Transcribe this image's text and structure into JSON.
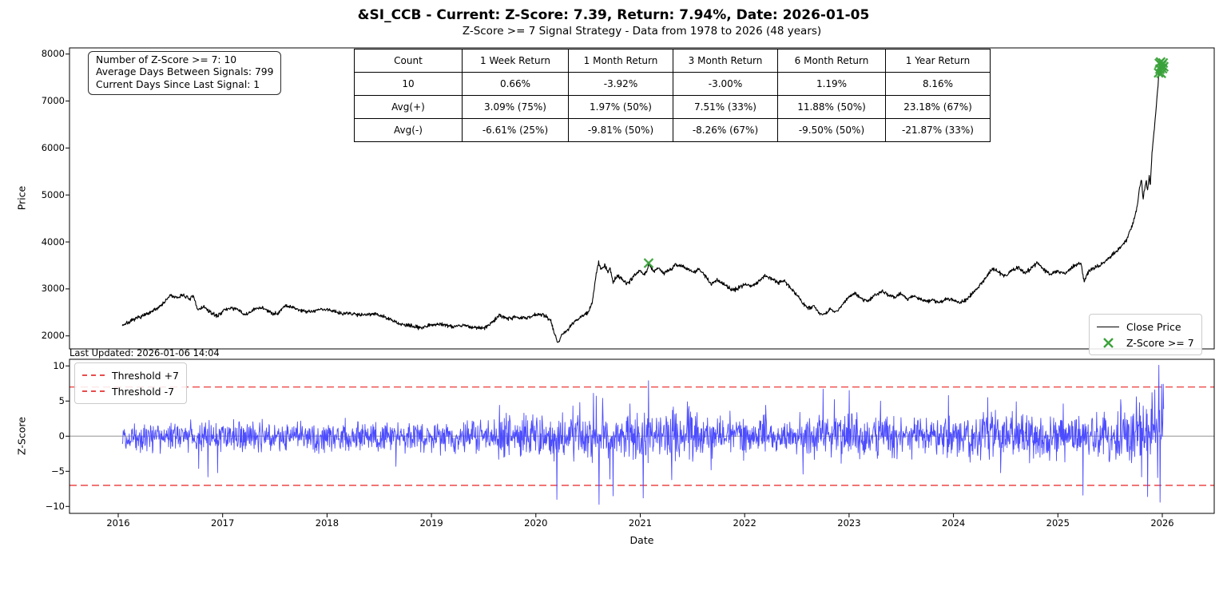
{
  "header": {
    "title": "&SI_CCB - Current: Z-Score: 7.39, Return: 7.94%, Date: 2026-01-05",
    "subtitle": "Z-Score >= 7 Signal Strategy - Data from 1978 to 2026 (48 years)"
  },
  "info_box": {
    "lines": [
      "Number of Z-Score >= 7: 10",
      "Average Days Between Signals: 799",
      "Current Days Since Last Signal: 1"
    ]
  },
  "stats_table": {
    "columns": [
      "Count",
      "1 Week Return",
      "1 Month Return",
      "3 Month Return",
      "6 Month Return",
      "1 Year Return"
    ],
    "rows": [
      [
        "10",
        "0.66%",
        "-3.92%",
        "-3.00%",
        "1.19%",
        "8.16%"
      ],
      [
        "Avg(+)",
        "3.09% (75%)",
        "1.97% (50%)",
        "7.51% (33%)",
        "11.88% (50%)",
        "23.18% (67%)"
      ],
      [
        "Avg(-)",
        "-6.61% (25%)",
        "-9.81% (50%)",
        "-8.26% (67%)",
        "-9.50% (50%)",
        "-21.87% (33%)"
      ]
    ]
  },
  "price_chart": {
    "ylabel": "Price",
    "yticks": [
      8000,
      7000,
      6000,
      5000,
      4000,
      3000,
      2000
    ],
    "legend": [
      {
        "label": "Close Price",
        "type": "line",
        "color": "#000000"
      },
      {
        "label": "Z-Score >= 7",
        "type": "x-marker",
        "color": "#3aa23a"
      }
    ]
  },
  "zscore_chart": {
    "ylabel": "Z-Score",
    "ytick_values": [
      10,
      5,
      0,
      -5,
      -10
    ],
    "ytick_labels": [
      "10",
      "5",
      "0",
      "−5",
      "−10"
    ],
    "legend": [
      {
        "label": "Threshold +7"
      },
      {
        "label": "Threshold -7"
      }
    ]
  },
  "xaxis": {
    "label": "Date",
    "ticks": [
      2016,
      2017,
      2018,
      2019,
      2020,
      2021,
      2022,
      2023,
      2024,
      2025,
      2026
    ]
  },
  "footer": {
    "last_updated": "Last Updated: 2026-01-06 14:04"
  },
  "colors": {
    "price": "#000000",
    "signal": "#3aa23a",
    "zscore": "#4c4cff",
    "threshold": "#ee4444",
    "zero_line": "#b0b0b0",
    "spine": "#000000"
  },
  "chart_data": [
    {
      "type": "line",
      "name": "Close Price",
      "xlabel": "Date",
      "ylabel": "Price",
      "x_range": [
        2016.04,
        2026.014
      ],
      "ylim": [
        1720,
        8130
      ],
      "noise": {
        "seed": 7,
        "amp": 20,
        "steps_per_year": 260
      },
      "keypoints": [
        [
          2016.04,
          2230
        ],
        [
          2016.12,
          2310
        ],
        [
          2016.2,
          2400
        ],
        [
          2016.3,
          2480
        ],
        [
          2016.38,
          2600
        ],
        [
          2016.45,
          2730
        ],
        [
          2016.5,
          2870
        ],
        [
          2016.56,
          2800
        ],
        [
          2016.62,
          2880
        ],
        [
          2016.68,
          2780
        ],
        [
          2016.72,
          2840
        ],
        [
          2016.76,
          2560
        ],
        [
          2016.82,
          2620
        ],
        [
          2016.88,
          2500
        ],
        [
          2016.95,
          2420
        ],
        [
          2017.0,
          2530
        ],
        [
          2017.08,
          2600
        ],
        [
          2017.15,
          2550
        ],
        [
          2017.22,
          2440
        ],
        [
          2017.3,
          2560
        ],
        [
          2017.38,
          2610
        ],
        [
          2017.45,
          2500
        ],
        [
          2017.52,
          2470
        ],
        [
          2017.6,
          2650
        ],
        [
          2017.68,
          2600
        ],
        [
          2017.75,
          2540
        ],
        [
          2017.85,
          2520
        ],
        [
          2017.95,
          2570
        ],
        [
          2018.05,
          2540
        ],
        [
          2018.15,
          2480
        ],
        [
          2018.25,
          2470
        ],
        [
          2018.35,
          2450
        ],
        [
          2018.45,
          2480
        ],
        [
          2018.55,
          2400
        ],
        [
          2018.65,
          2300
        ],
        [
          2018.72,
          2240
        ],
        [
          2018.8,
          2210
        ],
        [
          2018.9,
          2180
        ],
        [
          2019.0,
          2240
        ],
        [
          2019.1,
          2250
        ],
        [
          2019.2,
          2200
        ],
        [
          2019.3,
          2230
        ],
        [
          2019.4,
          2180
        ],
        [
          2019.5,
          2160
        ],
        [
          2019.58,
          2280
        ],
        [
          2019.65,
          2440
        ],
        [
          2019.72,
          2380
        ],
        [
          2019.8,
          2400
        ],
        [
          2019.9,
          2370
        ],
        [
          2020.0,
          2460
        ],
        [
          2020.08,
          2440
        ],
        [
          2020.14,
          2340
        ],
        [
          2020.18,
          2050
        ],
        [
          2020.21,
          1840
        ],
        [
          2020.25,
          2040
        ],
        [
          2020.3,
          2120
        ],
        [
          2020.38,
          2320
        ],
        [
          2020.45,
          2430
        ],
        [
          2020.5,
          2500
        ],
        [
          2020.54,
          2700
        ],
        [
          2020.58,
          3350
        ],
        [
          2020.6,
          3560
        ],
        [
          2020.63,
          3420
        ],
        [
          2020.66,
          3500
        ],
        [
          2020.69,
          3370
        ],
        [
          2020.71,
          3440
        ],
        [
          2020.74,
          3140
        ],
        [
          2020.78,
          3280
        ],
        [
          2020.82,
          3230
        ],
        [
          2020.87,
          3120
        ],
        [
          2020.9,
          3160
        ],
        [
          2020.95,
          3310
        ],
        [
          2021.0,
          3390
        ],
        [
          2021.03,
          3290
        ],
        [
          2021.06,
          3360
        ],
        [
          2021.08,
          3550
        ],
        [
          2021.1,
          3470
        ],
        [
          2021.13,
          3390
        ],
        [
          2021.17,
          3450
        ],
        [
          2021.22,
          3330
        ],
        [
          2021.28,
          3400
        ],
        [
          2021.34,
          3520
        ],
        [
          2021.4,
          3490
        ],
        [
          2021.46,
          3410
        ],
        [
          2021.52,
          3360
        ],
        [
          2021.56,
          3430
        ],
        [
          2021.62,
          3280
        ],
        [
          2021.68,
          3100
        ],
        [
          2021.74,
          3190
        ],
        [
          2021.8,
          3110
        ],
        [
          2021.87,
          2990
        ],
        [
          2021.93,
          3000
        ],
        [
          2022.0,
          3100
        ],
        [
          2022.07,
          3060
        ],
        [
          2022.13,
          3160
        ],
        [
          2022.2,
          3290
        ],
        [
          2022.26,
          3210
        ],
        [
          2022.32,
          3140
        ],
        [
          2022.38,
          3170
        ],
        [
          2022.44,
          3020
        ],
        [
          2022.5,
          2870
        ],
        [
          2022.56,
          2690
        ],
        [
          2022.62,
          2580
        ],
        [
          2022.66,
          2640
        ],
        [
          2022.71,
          2490
        ],
        [
          2022.76,
          2450
        ],
        [
          2022.82,
          2570
        ],
        [
          2022.87,
          2500
        ],
        [
          2022.93,
          2640
        ],
        [
          2023.0,
          2840
        ],
        [
          2023.06,
          2900
        ],
        [
          2023.12,
          2790
        ],
        [
          2023.18,
          2730
        ],
        [
          2023.25,
          2880
        ],
        [
          2023.32,
          2950
        ],
        [
          2023.38,
          2870
        ],
        [
          2023.44,
          2830
        ],
        [
          2023.5,
          2910
        ],
        [
          2023.56,
          2780
        ],
        [
          2023.62,
          2850
        ],
        [
          2023.68,
          2800
        ],
        [
          2023.74,
          2720
        ],
        [
          2023.8,
          2770
        ],
        [
          2023.87,
          2710
        ],
        [
          2023.93,
          2790
        ],
        [
          2024.0,
          2760
        ],
        [
          2024.06,
          2700
        ],
        [
          2024.12,
          2770
        ],
        [
          2024.2,
          2950
        ],
        [
          2024.27,
          3120
        ],
        [
          2024.33,
          3310
        ],
        [
          2024.38,
          3430
        ],
        [
          2024.44,
          3340
        ],
        [
          2024.5,
          3270
        ],
        [
          2024.56,
          3400
        ],
        [
          2024.62,
          3460
        ],
        [
          2024.68,
          3330
        ],
        [
          2024.74,
          3420
        ],
        [
          2024.8,
          3560
        ],
        [
          2024.86,
          3430
        ],
        [
          2024.92,
          3310
        ],
        [
          2025.0,
          3380
        ],
        [
          2025.06,
          3310
        ],
        [
          2025.12,
          3430
        ],
        [
          2025.18,
          3520
        ],
        [
          2025.22,
          3560
        ],
        [
          2025.25,
          3160
        ],
        [
          2025.3,
          3390
        ],
        [
          2025.36,
          3460
        ],
        [
          2025.42,
          3530
        ],
        [
          2025.48,
          3650
        ],
        [
          2025.54,
          3760
        ],
        [
          2025.6,
          3880
        ],
        [
          2025.65,
          4020
        ],
        [
          2025.7,
          4280
        ],
        [
          2025.73,
          4480
        ],
        [
          2025.76,
          4750
        ],
        [
          2025.78,
          5120
        ],
        [
          2025.8,
          5330
        ],
        [
          2025.815,
          4920
        ],
        [
          2025.83,
          5120
        ],
        [
          2025.845,
          5310
        ],
        [
          2025.86,
          5080
        ],
        [
          2025.875,
          5420
        ],
        [
          2025.885,
          5180
        ],
        [
          2025.9,
          5850
        ],
        [
          2025.92,
          6320
        ],
        [
          2025.94,
          6850
        ],
        [
          2025.96,
          7380
        ],
        [
          2025.975,
          7820
        ],
        [
          2025.985,
          7600
        ],
        [
          2025.995,
          7840
        ],
        [
          2026.005,
          7660
        ],
        [
          2026.014,
          7730
        ]
      ],
      "signals": [
        [
          2021.08,
          3550
        ],
        [
          2025.965,
          7600
        ],
        [
          2025.972,
          7800
        ],
        [
          2025.978,
          7680
        ],
        [
          2025.984,
          7830
        ],
        [
          2025.99,
          7590
        ],
        [
          2025.996,
          7760
        ],
        [
          2026.002,
          7690
        ],
        [
          2026.008,
          7810
        ],
        [
          2026.014,
          7730
        ]
      ]
    },
    {
      "type": "line",
      "name": "Z-Score",
      "ylabel": "Z-Score",
      "x_range": [
        2016.04,
        2026.014
      ],
      "ylim": [
        -11,
        11
      ],
      "thresholds": [
        7,
        -7
      ],
      "noise": {
        "seed": 12,
        "steps_per_year": 260,
        "clip": 6.5,
        "segments": [
          [
            2016.04,
            2019.6,
            1.0
          ],
          [
            2019.6,
            2020.35,
            1.5
          ],
          [
            2020.35,
            2021.55,
            1.7
          ],
          [
            2021.55,
            2022.6,
            1.35
          ],
          [
            2022.6,
            2023.2,
            1.5
          ],
          [
            2023.2,
            2024.15,
            1.3
          ],
          [
            2024.15,
            2025.55,
            1.55
          ],
          [
            2025.55,
            2026.02,
            2.1
          ]
        ]
      },
      "spikes": [
        [
          2016.77,
          -4.6
        ],
        [
          2016.86,
          -5.8
        ],
        [
          2016.95,
          -5.2
        ],
        [
          2018.66,
          -4.3
        ],
        [
          2019.65,
          4.4
        ],
        [
          2020.2,
          -9.0
        ],
        [
          2020.42,
          4.8
        ],
        [
          2020.55,
          6.1
        ],
        [
          2020.58,
          5.7
        ],
        [
          2020.605,
          -9.7
        ],
        [
          2020.64,
          5.4
        ],
        [
          2020.71,
          -6.1
        ],
        [
          2020.74,
          -8.5
        ],
        [
          2020.9,
          4.6
        ],
        [
          2021.03,
          -8.8
        ],
        [
          2021.08,
          7.9
        ],
        [
          2021.3,
          -6.2
        ],
        [
          2021.45,
          4.9
        ],
        [
          2021.68,
          -4.8
        ],
        [
          2022.2,
          4.4
        ],
        [
          2022.56,
          -5.4
        ],
        [
          2022.75,
          6.7
        ],
        [
          2022.86,
          5.2
        ],
        [
          2023.0,
          6.5
        ],
        [
          2023.3,
          5.0
        ],
        [
          2023.95,
          5.8
        ],
        [
          2024.33,
          5.5
        ],
        [
          2024.45,
          -5.2
        ],
        [
          2024.6,
          4.9
        ],
        [
          2025.05,
          4.6
        ],
        [
          2025.24,
          -8.4
        ],
        [
          2025.6,
          5.2
        ],
        [
          2025.75,
          5.6
        ],
        [
          2025.8,
          -5.8
        ],
        [
          2025.86,
          -8.6
        ],
        [
          2025.9,
          6.2
        ],
        [
          2025.93,
          6.6
        ],
        [
          2025.955,
          -5.9
        ],
        [
          2025.966,
          10.1
        ],
        [
          2025.978,
          -9.4
        ],
        [
          2025.995,
          7.39
        ],
        [
          2026.01,
          7.4
        ]
      ]
    }
  ]
}
